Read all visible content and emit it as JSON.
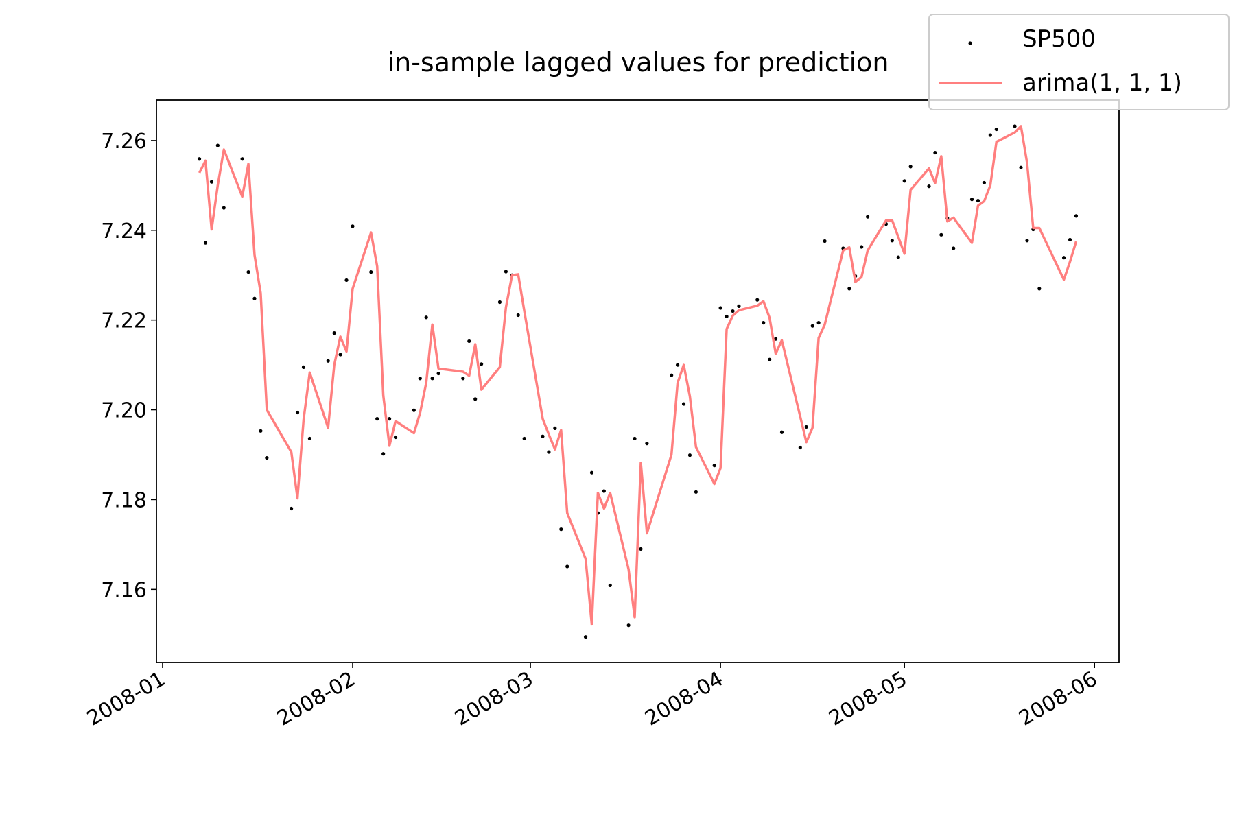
{
  "chart_data": {
    "type": "line",
    "title": "in-sample lagged values for prediction",
    "x": [
      6,
      7,
      8,
      9,
      10,
      13,
      14,
      15,
      16,
      17,
      21,
      22,
      23,
      24,
      27,
      28,
      29,
      30,
      31,
      34,
      35,
      36,
      37,
      38,
      41,
      42,
      43,
      44,
      45,
      49,
      50,
      51,
      52,
      55,
      56,
      57,
      58,
      59,
      62,
      63,
      64,
      65,
      66,
      69,
      70,
      71,
      72,
      73,
      76,
      77,
      78,
      79,
      83,
      84,
      85,
      86,
      87,
      90,
      91,
      92,
      93,
      94,
      97,
      98,
      99,
      100,
      101,
      104,
      105,
      106,
      107,
      108,
      111,
      112,
      113,
      114,
      115,
      118,
      119,
      120,
      121,
      122,
      125,
      126,
      127,
      128,
      129,
      132,
      133,
      134,
      135,
      136,
      139,
      140,
      141,
      142,
      143,
      147,
      148,
      149
    ],
    "series": [
      {
        "name": "SP500",
        "type": "scatter",
        "color": "#000000",
        "values": [
          7.2559,
          7.2372,
          7.2508,
          7.2589,
          7.245,
          7.2559,
          7.2307,
          7.2248,
          7.1953,
          7.1893,
          7.178,
          7.1994,
          7.2095,
          7.1936,
          7.2109,
          7.2171,
          7.2123,
          7.2289,
          7.2409,
          7.2307,
          7.198,
          7.1902,
          7.198,
          7.1939,
          7.1999,
          7.207,
          7.2206,
          7.207,
          7.2081,
          7.207,
          7.2153,
          7.2024,
          7.2102,
          7.224,
          7.2308,
          7.23,
          7.2211,
          7.1936,
          7.1941,
          7.1906,
          7.1959,
          7.1734,
          7.1651,
          7.1494,
          7.186,
          7.177,
          7.1819,
          7.1609,
          7.152,
          7.1936,
          7.169,
          7.1925,
          7.2077,
          7.21,
          7.2013,
          7.1899,
          7.1817,
          7.1876,
          7.2227,
          7.2208,
          7.222,
          7.2231,
          7.2245,
          7.2194,
          7.2112,
          7.2158,
          7.195,
          7.1916,
          7.1962,
          7.2187,
          7.2194,
          7.2376,
          7.236,
          7.227,
          7.2298,
          7.2363,
          7.243,
          7.2414,
          7.2377,
          7.234,
          7.251,
          7.2542,
          7.2498,
          7.2573,
          7.239,
          7.2427,
          7.236,
          7.2469,
          7.2466,
          7.2506,
          7.2612,
          7.2625,
          7.2632,
          7.254,
          7.2377,
          7.2402,
          7.227,
          7.2339,
          7.2379,
          7.2432
        ]
      },
      {
        "name": "arima(1, 1, 1)",
        "type": "line",
        "color": "#ff7f7f",
        "values": [
          7.2528,
          7.2555,
          7.2402,
          7.25,
          7.258,
          7.2475,
          7.2548,
          7.2345,
          7.226,
          7.2,
          7.1906,
          7.1803,
          7.1978,
          7.2083,
          7.196,
          7.21,
          7.2163,
          7.213,
          7.227,
          7.2395,
          7.232,
          7.2032,
          7.192,
          7.1975,
          7.1948,
          7.1993,
          7.206,
          7.219,
          7.2092,
          7.2085,
          7.2076,
          7.2146,
          7.2045,
          7.2095,
          7.2228,
          7.23,
          7.2302,
          7.222,
          7.198,
          7.1945,
          7.1912,
          7.1955,
          7.177,
          7.1668,
          7.1522,
          7.1815,
          7.178,
          7.1815,
          7.1645,
          7.1538,
          7.1882,
          7.1725,
          7.19,
          7.206,
          7.21,
          7.203,
          7.1917,
          7.1835,
          7.187,
          7.218,
          7.221,
          7.2222,
          7.2232,
          7.2242,
          7.2205,
          7.2125,
          7.2155,
          7.1985,
          7.1928,
          7.196,
          7.216,
          7.219,
          7.2355,
          7.2362,
          7.2285,
          7.2296,
          7.2355,
          7.2422,
          7.2422,
          7.2385,
          7.2348,
          7.249,
          7.2538,
          7.2505,
          7.2565,
          7.242,
          7.2428,
          7.2372,
          7.2455,
          7.2465,
          7.25,
          7.2597,
          7.2618,
          7.2632,
          7.255,
          7.2405,
          7.2405,
          7.229,
          7.233,
          7.2375
        ]
      }
    ],
    "xlim": [
      -1,
      156
    ],
    "xticks": [
      {
        "value": 0,
        "label": "2008-01"
      },
      {
        "value": 31,
        "label": "2008-02"
      },
      {
        "value": 60,
        "label": "2008-03"
      },
      {
        "value": 91,
        "label": "2008-04"
      },
      {
        "value": 121,
        "label": "2008-05"
      },
      {
        "value": 152,
        "label": "2008-06"
      }
    ],
    "ylim": [
      7.1437,
      7.269
    ],
    "yticks": [
      7.16,
      7.18,
      {
        "value": 7.2,
        "label": "7.20"
      },
      7.22,
      7.24,
      7.26
    ],
    "grid": false,
    "legend": "upper right"
  }
}
